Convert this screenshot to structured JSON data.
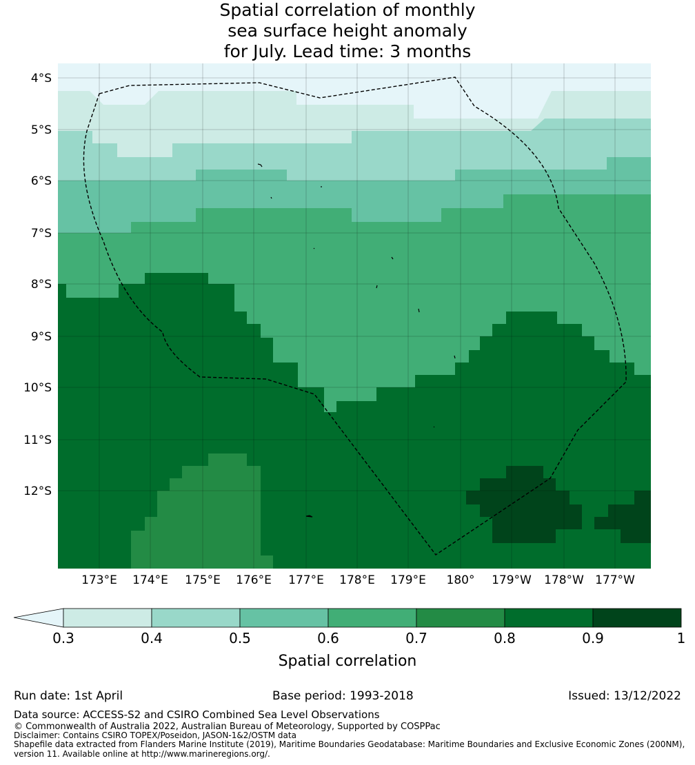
{
  "title": {
    "line1": "Spatial correlation of monthly",
    "line2": "sea surface height anomaly",
    "line3": "for July. Lead time: 3 months"
  },
  "map": {
    "lat_labels": [
      "4°S",
      "5°S",
      "6°S",
      "7°S",
      "8°S",
      "9°S",
      "10°S",
      "11°S",
      "12°S"
    ],
    "lon_labels": [
      "173°E",
      "174°E",
      "175°E",
      "176°E",
      "177°E",
      "178°E",
      "179°E",
      "180°",
      "179°W",
      "178°W",
      "177°W"
    ],
    "lon_range": [
      172.2,
      183.7
    ],
    "lat_range": [
      -13.5,
      -3.7
    ],
    "field_description": "gridded spatial correlation, higher (0.8-1) in south and east, lower (0.3-0.5) in north",
    "eez_boundary": "dashed black line",
    "grid": true
  },
  "colorbar": {
    "ticks": [
      "0.3",
      "0.4",
      "0.5",
      "0.6",
      "0.7",
      "0.8",
      "0.9",
      "1"
    ],
    "colors": [
      "#cdebe5",
      "#99d8c9",
      "#66c2a4",
      "#41ae76",
      "#238b45",
      "#006d2c",
      "#00441b"
    ],
    "extend_color": "#e5f5f9",
    "label": "Spatial correlation"
  },
  "footer": {
    "run_date": "Run date: 1st April",
    "base_period": "Base period: 1993-2018",
    "issued": "Issued: 13/12/2022",
    "data_source": "Data source: ACCESS-S2 and CSIRO Combined Sea Level Observations",
    "copyright": "© Commonwealth of Australia 2022, Australian Bureau of Meteorology, Supported by COSPPac",
    "disclaimer": "Disclaimer: Contains CSIRO TOPEX/Poseidon, JASON-1&2/OSTM data",
    "shapefile1": "Shapefile data extracted from Flanders Marine Institute (2019), Maritime Boundaries Geodatabase: Maritime Boundaries and Exclusive Economic Zones (200NM),",
    "shapefile2": "version 11. Available online at http://www.marineregions.org/."
  }
}
